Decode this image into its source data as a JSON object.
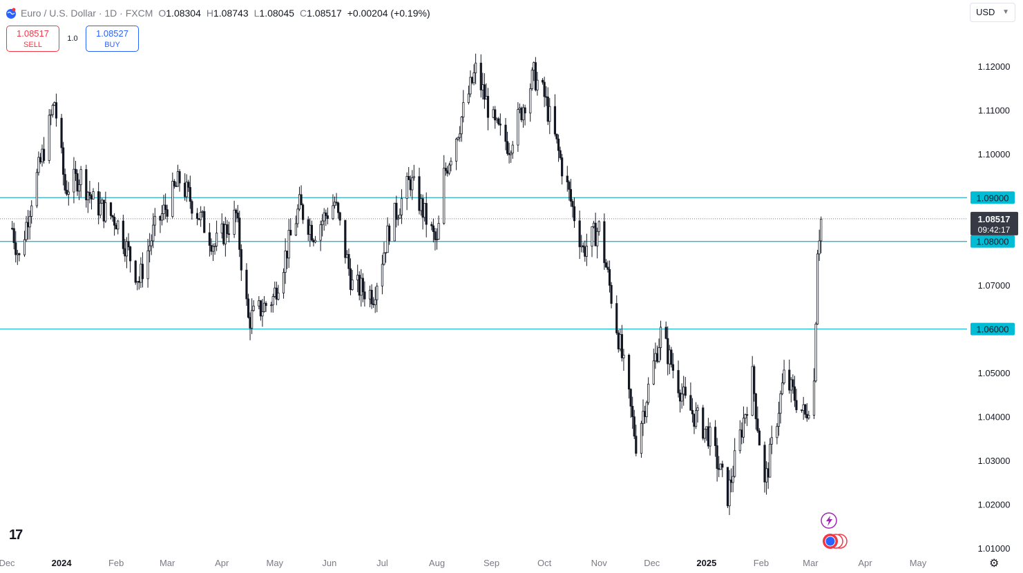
{
  "header": {
    "symbol": "Euro / U.S. Dollar · 1D · FXCM",
    "open_label": "O",
    "open": "1.08304",
    "high_label": "H",
    "high": "1.08743",
    "low_label": "L",
    "low": "1.08045",
    "close_label": "C",
    "close": "1.08517",
    "change": "+0.00204 (+0.19%)"
  },
  "trade": {
    "sell_price": "1.08517",
    "sell_label": "SELL",
    "quantity": "1.0",
    "buy_price": "1.08527",
    "buy_label": "BUY"
  },
  "currency_selector": "USD",
  "price_tag": {
    "price": "1.08517",
    "countdown": "09:42:17"
  },
  "colors": {
    "up": "#131722",
    "down": "#131722",
    "level_line": "#22b8cf",
    "level_label_bg": "#00bcd4",
    "price_tag_bg": "#363a45",
    "sell": "#f23645",
    "buy": "#2962ff"
  },
  "icons": [
    "globe-icon",
    "tradingview-logo-icon",
    "lightning-icon",
    "settings-icon"
  ],
  "chart_data": {
    "type": "candlestick",
    "x_axis_labels": [
      "Dec",
      "2024",
      "Feb",
      "Mar",
      "Apr",
      "May",
      "Jun",
      "Jul",
      "Aug",
      "Sep",
      "Oct",
      "Nov",
      "Dec",
      "2025",
      "Feb",
      "Mar",
      "Apr",
      "May"
    ],
    "y_axis_labels": [
      "1.12000",
      "1.11000",
      "1.10000",
      "1.09000",
      "1.08000",
      "1.07000",
      "1.06000",
      "1.05000",
      "1.04000",
      "1.03000",
      "1.02000",
      "1.01000"
    ],
    "ylim": [
      1.0095,
      1.1285
    ],
    "horizontal_levels": [
      1.09,
      1.08,
      1.06
    ],
    "current_price": 1.08517,
    "close_path": [
      [
        "2023-12-04",
        1.083
      ],
      [
        "2023-12-08",
        1.076
      ],
      [
        "2023-12-15",
        1.09
      ],
      [
        "2023-12-22",
        1.101
      ],
      [
        "2023-12-28",
        1.112
      ],
      [
        "2024-01-03",
        1.092
      ],
      [
        "2024-01-12",
        1.095
      ],
      [
        "2024-01-19",
        1.089
      ],
      [
        "2024-02-01",
        1.085
      ],
      [
        "2024-02-14",
        1.071
      ],
      [
        "2024-02-22",
        1.082
      ],
      [
        "2024-03-08",
        1.094
      ],
      [
        "2024-03-19",
        1.086
      ],
      [
        "2024-03-28",
        1.079
      ],
      [
        "2024-04-09",
        1.086
      ],
      [
        "2024-04-16",
        1.062
      ],
      [
        "2024-04-30",
        1.067
      ],
      [
        "2024-05-15",
        1.088
      ],
      [
        "2024-05-23",
        1.082
      ],
      [
        "2024-06-04",
        1.089
      ],
      [
        "2024-06-14",
        1.07
      ],
      [
        "2024-06-26",
        1.068
      ],
      [
        "2024-07-05",
        1.083
      ],
      [
        "2024-07-17",
        1.094
      ],
      [
        "2024-08-01",
        1.079
      ],
      [
        "2024-08-05",
        1.095
      ],
      [
        "2024-08-23",
        1.119
      ],
      [
        "2024-09-03",
        1.106
      ],
      [
        "2024-09-11",
        1.102
      ],
      [
        "2024-09-25",
        1.118
      ],
      [
        "2024-10-01",
        1.113
      ],
      [
        "2024-10-23",
        1.078
      ],
      [
        "2024-11-01",
        1.083
      ],
      [
        "2024-11-06",
        1.072
      ],
      [
        "2024-11-13",
        1.056
      ],
      [
        "2024-11-22",
        1.034
      ],
      [
        "2024-12-06",
        1.059
      ],
      [
        "2024-12-20",
        1.043
      ],
      [
        "2025-01-02",
        1.036
      ],
      [
        "2025-01-13",
        1.022
      ],
      [
        "2025-01-27",
        1.049
      ],
      [
        "2025-02-03",
        1.024
      ],
      [
        "2025-02-14",
        1.049
      ],
      [
        "2025-02-26",
        1.04
      ],
      [
        "2025-03-03",
        1.048
      ],
      [
        "2025-03-05",
        1.079
      ],
      [
        "2025-03-07",
        1.085
      ]
    ]
  }
}
